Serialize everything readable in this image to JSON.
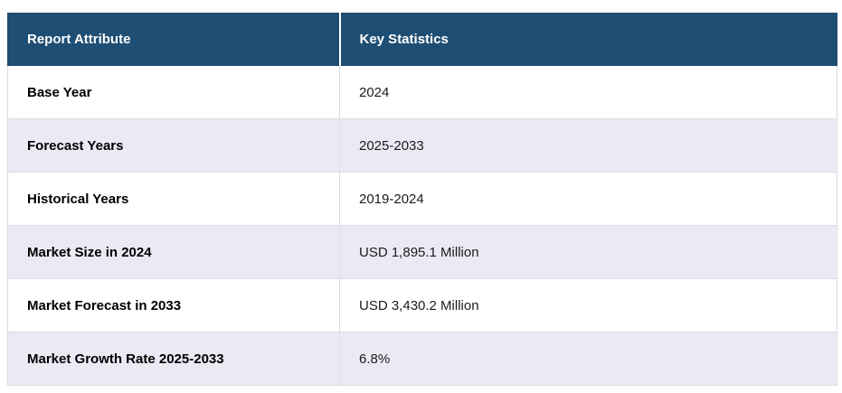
{
  "chart_data": {
    "type": "table",
    "columns": [
      "Report Attribute",
      "Key Statistics"
    ],
    "rows": [
      [
        "Base Year",
        "2024"
      ],
      [
        "Forecast Years",
        "2025-2033"
      ],
      [
        "Historical Years",
        "2019-2024"
      ],
      [
        "Market Size in 2024",
        "USD 1,895.1 Million"
      ],
      [
        "Market Forecast in 2033",
        "USD 3,430.2 Million"
      ],
      [
        "Market Growth Rate 2025-2033",
        "6.8%"
      ]
    ]
  },
  "table": {
    "header": {
      "attribute_label": "Report Attribute",
      "statistics_label": "Key Statistics"
    },
    "rows": [
      {
        "attribute": "Base Year",
        "value": "2024"
      },
      {
        "attribute": "Forecast Years",
        "value": "2025-2033"
      },
      {
        "attribute": "Historical Years",
        "value": "2019-2024"
      },
      {
        "attribute": "Market Size in 2024",
        "value": "USD 1,895.1 Million"
      },
      {
        "attribute": "Market Forecast in 2033",
        "value": "USD 3,430.2 Million"
      },
      {
        "attribute": "Market Growth Rate 2025-2033",
        "value": "6.8%"
      }
    ],
    "colors": {
      "header_background": "#1F4E74",
      "header_text": "#FFFFFF",
      "alt_row_background": "#E9EAF4",
      "row_background": "#FFFFFF",
      "border": "#DCDCE4"
    }
  }
}
